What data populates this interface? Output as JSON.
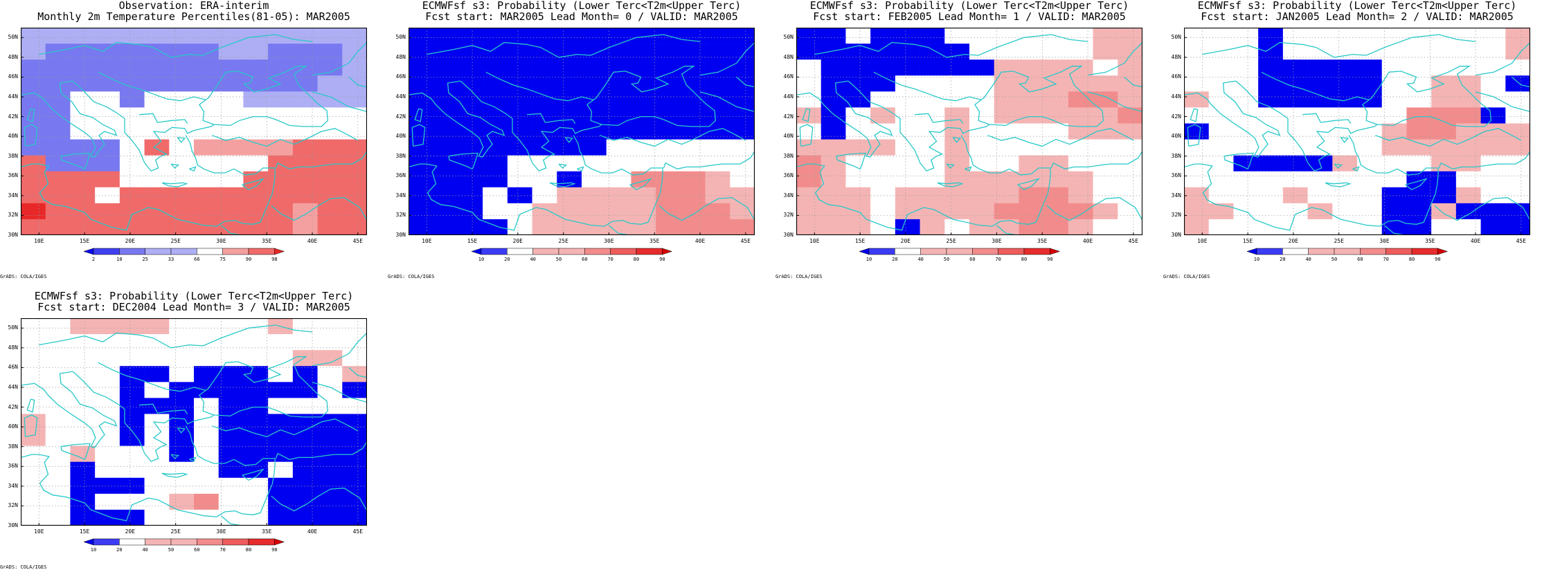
{
  "lon_ticks": [
    "10E",
    "15E",
    "20E",
    "25E",
    "30E",
    "35E",
    "40E",
    "45E"
  ],
  "lat_ticks": [
    "50N",
    "48N",
    "46N",
    "44N",
    "42N",
    "40N",
    "38N",
    "36N",
    "34N",
    "32N",
    "30N"
  ],
  "colors": {
    "coast": "#28c8c8",
    "frame": "#000000",
    "obs_scale": {
      "2": "#0a0af0",
      "10": "#4040f0",
      "25": "#7878f0",
      "33": "#aeaef5",
      "66": "#ffffff",
      "75": "#f5a0a0",
      "90": "#f06a6a",
      "98": "#e82828"
    },
    "prob_scale": {
      "10": "#0000f0",
      "20": "#3c3cf5",
      "40": "#ffffff",
      "50": "#f5b4b4",
      "60": "#f28c8c",
      "70": "#ee5c5c",
      "80": "#e62c2c",
      "90": "#d80000"
    }
  },
  "panels": [
    {
      "title1": "Observation: ERA-interim",
      "title2": "Monthly 2m Temperature Percentiles(81-05): MAR2005",
      "colorbar_labels": [
        "2",
        "10",
        "25",
        "33",
        "66",
        "75",
        "90",
        "98"
      ],
      "scale": "obs_scale",
      "grads_label": "GrADS: COLA/IGES",
      "grid": [
        "AAAAAAAAAAAAAA",
        "ABBBBBBBAABBBA",
        "BBBBBBBBBBBBBA",
        "BBBBBBBBBBBBAA",
        "BBWWBWWWWAAAAA",
        "BBWWWWWWWWWWWW",
        "BBWWWWWWWWWWWW",
        "BBBBWFWRRRRFFF",
        "FBBBWWWWWWFFFF",
        "FFFFWWWWWFFFFF",
        "FFFWFFFFFFFFFF",
        "GFFFFFFFFFFRFF",
        "FFFFFFFFFFFRFF"
      ],
      "valid_label": "MAR2005"
    },
    {
      "title1": "ECMWFsf s3: Probability (Lower Terc<T2m<Upper Terc)",
      "title2": "Fcst start: MAR2005  Lead Month= 0 / VALID: MAR2005",
      "colorbar_labels": [
        "10",
        "20",
        "40",
        "50",
        "60",
        "70",
        "80",
        "90"
      ],
      "scale": "prob_scale",
      "grads_label": "GrADS: COLA/IGES",
      "grid": [
        "AAAAAAAAAAAAAA",
        "AAAAAAAAAAAAAA",
        "AAAAAAAAAAAAAA",
        "AAAAAAAAAAAAAA",
        "AAAAAAAAAAAAAA",
        "AAAAAAAAAAAAAA",
        "AAAAAAAAAAAAAA",
        "AAAAAAAAWWWWWW",
        "AAAAWWWWWWWWWW",
        "AAAAWWAWWFFFRW",
        "AAAWAWRRRRFFRR",
        "AAAWWRRRRRFFFR",
        "AAAAWRRRRRFFFF"
      ],
      "valid_label": "MAR2005"
    },
    {
      "title1": "ECMWFsf s3: Probability (Lower Terc<T2m<Upper Terc)",
      "title2": "Fcst start: FEB2005  Lead Month= 1 / VALID: MAR2005",
      "colorbar_labels": [
        "10",
        "20",
        "40",
        "50",
        "60",
        "70",
        "80",
        "90"
      ],
      "scale": "prob_scale",
      "grads_label": "GrADS: COLA/IGES",
      "grid": [
        "AAWAAAWWWWWWRR",
        "AAAAAAAWWWWWRR",
        "WAAAAAAARRRRWR",
        "WAAAWWWWRRRRRR",
        "WAAWWWWWRRRFFR",
        "RAWRWWRWRRRRRF",
        "WAWWWWRWWWWRRR",
        "RRRRWWRWWWWWWW",
        "FRWWWWRWWRRWWW",
        "FRWWWWRRRRRRWW",
        "RRRWRRRRRFFRWW",
        "RRRWRRRRFFFFRW",
        "RRRWARWRRFFRWW"
      ],
      "valid_label": "MAR2005"
    },
    {
      "title1": "ECMWFsf s3: Probability (Lower Terc<T2m<Upper Terc)",
      "title2": "Fcst start: JAN2005  Lead Month= 2 / VALID: MAR2005",
      "colorbar_labels": [
        "10",
        "20",
        "40",
        "50",
        "60",
        "70",
        "80",
        "90"
      ],
      "scale": "prob_scale",
      "grads_label": "GrADS: COLA/IGES",
      "grid": [
        "WWWAWWWWWWWWWR",
        "WWWAWWWWWWWWWR",
        "WWWAAAAAWWWWWW",
        "WWWAAAAAWWRRWA",
        "RWWAAAAAWWRRWW",
        "WWWWWWWWWFFFAW",
        "AWWWWWWWRFFRRR",
        "WWWWWWWWRRRRRR",
        "WWAAAARWWWRRWW",
        "WWWWWWWWWAAWWW",
        "RWWWRWWWAAARWW",
        "RRWWWRWWAARAAA",
        "RWWWWWWWAAWWAA"
      ],
      "valid_label": "MAR2005"
    },
    {
      "title1": "ECMWFsf s3: Probability (Lower Terc<T2m<Upper Terc)",
      "title2": "Fcst start: DEC2004  Lead Month= 3 / VALID: MAR2005",
      "colorbar_labels": [
        "10",
        "20",
        "40",
        "50",
        "60",
        "70",
        "80",
        "90"
      ],
      "scale": "prob_scale",
      "grads_label": "GrADS: COLA/IGES",
      "grid": [
        "WWRRRRWWWWRWWW",
        "WWWWWWWWWWWWWW",
        "WWWWWWWWWWWRRW",
        "WWWWAAWAAAWAWR",
        "WWWWAWAAAAAAWA",
        "WWWWAAAWAAWWWW",
        "RWWWAWAWAAAAAA",
        "RWWWAWAWAAAAAA",
        "WWRWWWAWAAAAAA",
        "WWAWWWWWAAWAAA",
        "WWAAAWWWWWAAAA",
        "WWAWWWRFWWAAAA",
        "WWAAAWWWWWAAAA"
      ],
      "valid_label": "MAR2005"
    }
  ]
}
